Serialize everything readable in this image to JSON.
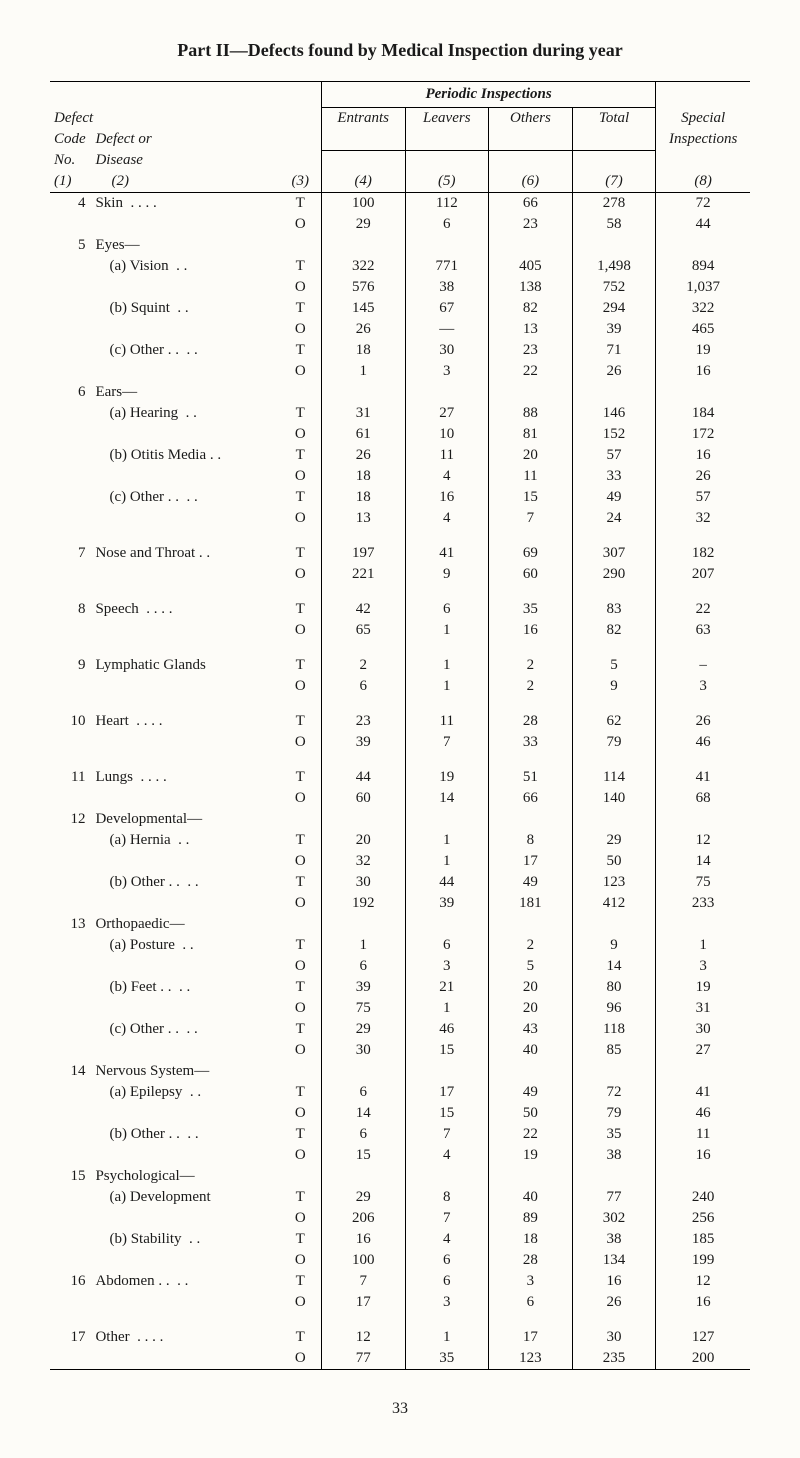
{
  "title": "Part II—Defects found by Medical Inspection during year",
  "page_number": "33",
  "headers": {
    "defect_label1": "Defect",
    "code_label": "Code",
    "defect_or": "Defect or",
    "no_label": "No.",
    "disease_label": "Disease",
    "col1": "(1)",
    "col2": "(2)",
    "col3": "(3)",
    "col4": "(4)",
    "col5": "(5)",
    "col6": "(6)",
    "col7": "(7)",
    "col8": "(8)",
    "periodic": "Periodic Inspections",
    "entrants": "Entrants",
    "leavers": "Leavers",
    "others": "Others",
    "total": "Total",
    "special": "Special",
    "inspections": "Inspections"
  },
  "rows": [
    {
      "no": "4",
      "label": "Skin",
      "dots": ". .    . .",
      "t": [
        "100",
        "112",
        "66",
        "278",
        "72"
      ],
      "o": [
        "29",
        "6",
        "23",
        "58",
        "44"
      ]
    },
    {
      "no": "5",
      "label": "Eyes—",
      "t": null,
      "o": null
    },
    {
      "no": "",
      "label": "(a)  Vision",
      "sub": true,
      "dots": ". .",
      "t": [
        "322",
        "771",
        "405",
        "1,498",
        "894"
      ],
      "o": [
        "576",
        "38",
        "138",
        "752",
        "1,037"
      ]
    },
    {
      "no": "",
      "label": "(b)  Squint",
      "sub": true,
      "dots": ". .",
      "t": [
        "145",
        "67",
        "82",
        "294",
        "322"
      ],
      "o": [
        "26",
        "—",
        "13",
        "39",
        "465"
      ]
    },
    {
      "no": "",
      "label": "(c)  Other . .",
      "sub": true,
      "dots": ". .",
      "t": [
        "18",
        "30",
        "23",
        "71",
        "19"
      ],
      "o": [
        "1",
        "3",
        "22",
        "26",
        "16"
      ]
    },
    {
      "no": "6",
      "label": "Ears—",
      "t": null,
      "o": null
    },
    {
      "no": "",
      "label": "(a)  Hearing",
      "sub": true,
      "dots": ". .",
      "t": [
        "31",
        "27",
        "88",
        "146",
        "184"
      ],
      "o": [
        "61",
        "10",
        "81",
        "152",
        "172"
      ]
    },
    {
      "no": "",
      "label": "(b)  Otitis Media . .",
      "sub": true,
      "t": [
        "26",
        "11",
        "20",
        "57",
        "16"
      ],
      "o": [
        "18",
        "4",
        "11",
        "33",
        "26"
      ]
    },
    {
      "no": "",
      "label": "(c)  Other . .",
      "sub": true,
      "dots": ". .",
      "t": [
        "18",
        "16",
        "15",
        "49",
        "57"
      ],
      "o": [
        "13",
        "4",
        "7",
        "24",
        "32"
      ],
      "gap_after": true
    },
    {
      "no": "7",
      "label": "Nose and Throat . .",
      "t": [
        "197",
        "41",
        "69",
        "307",
        "182"
      ],
      "o": [
        "221",
        "9",
        "60",
        "290",
        "207"
      ],
      "gap_after": true
    },
    {
      "no": "8",
      "label": "Speech",
      "dots": ". .    . .",
      "t": [
        "42",
        "6",
        "35",
        "83",
        "22"
      ],
      "o": [
        "65",
        "1",
        "16",
        "82",
        "63"
      ],
      "gap_after": true
    },
    {
      "no": "9",
      "label": "Lymphatic Glands",
      "t": [
        "2",
        "1",
        "2",
        "5",
        "–"
      ],
      "o": [
        "6",
        "1",
        "2",
        "9",
        "3"
      ],
      "gap_after": true
    },
    {
      "no": "10",
      "label": "Heart",
      "dots": ". .    . .",
      "t": [
        "23",
        "11",
        "28",
        "62",
        "26"
      ],
      "o": [
        "39",
        "7",
        "33",
        "79",
        "46"
      ],
      "gap_after": true
    },
    {
      "no": "11",
      "label": "Lungs",
      "dots": ". .    . .",
      "t": [
        "44",
        "19",
        "51",
        "114",
        "41"
      ],
      "o": [
        "60",
        "14",
        "66",
        "140",
        "68"
      ]
    },
    {
      "no": "12",
      "label": "Developmental—",
      "t": null,
      "o": null
    },
    {
      "no": "",
      "label": "(a)  Hernia",
      "sub": true,
      "dots": ". .",
      "t": [
        "20",
        "1",
        "8",
        "29",
        "12"
      ],
      "o": [
        "32",
        "1",
        "17",
        "50",
        "14"
      ]
    },
    {
      "no": "",
      "label": "(b)  Other . .",
      "sub": true,
      "dots": ". .",
      "t": [
        "30",
        "44",
        "49",
        "123",
        "75"
      ],
      "o": [
        "192",
        "39",
        "181",
        "412",
        "233"
      ]
    },
    {
      "no": "13",
      "label": "Orthopaedic—",
      "t": null,
      "o": null
    },
    {
      "no": "",
      "label": "(a)  Posture",
      "sub": true,
      "dots": ". .",
      "t": [
        "1",
        "6",
        "2",
        "9",
        "1"
      ],
      "o": [
        "6",
        "3",
        "5",
        "14",
        "3"
      ]
    },
    {
      "no": "",
      "label": "(b)  Feet  . .",
      "sub": true,
      "dots": ". .",
      "t": [
        "39",
        "21",
        "20",
        "80",
        "19"
      ],
      "o": [
        "75",
        "1",
        "20",
        "96",
        "31"
      ]
    },
    {
      "no": "",
      "label": "(c)  Other . .",
      "sub": true,
      "dots": ". .",
      "t": [
        "29",
        "46",
        "43",
        "118",
        "30"
      ],
      "o": [
        "30",
        "15",
        "40",
        "85",
        "27"
      ]
    },
    {
      "no": "14",
      "label": "Nervous System—",
      "t": null,
      "o": null
    },
    {
      "no": "",
      "label": "(a)  Epilepsy",
      "sub": true,
      "dots": ". .",
      "t": [
        "6",
        "17",
        "49",
        "72",
        "41"
      ],
      "o": [
        "14",
        "15",
        "50",
        "79",
        "46"
      ]
    },
    {
      "no": "",
      "label": "(b)  Other . .",
      "sub": true,
      "dots": ". .",
      "t": [
        "6",
        "7",
        "22",
        "35",
        "11"
      ],
      "o": [
        "15",
        "4",
        "19",
        "38",
        "16"
      ]
    },
    {
      "no": "15",
      "label": "Psychological—",
      "t": null,
      "o": null
    },
    {
      "no": "",
      "label": "(a)  Development",
      "sub": true,
      "t": [
        "29",
        "8",
        "40",
        "77",
        "240"
      ],
      "o": [
        "206",
        "7",
        "89",
        "302",
        "256"
      ]
    },
    {
      "no": "",
      "label": "(b)  Stability",
      "sub": true,
      "dots": ". .",
      "t": [
        "16",
        "4",
        "18",
        "38",
        "185"
      ],
      "o": [
        "100",
        "6",
        "28",
        "134",
        "199"
      ]
    },
    {
      "no": "16",
      "label": "Abdomen . .",
      "dots": ". .",
      "t": [
        "7",
        "6",
        "3",
        "16",
        "12"
      ],
      "o": [
        "17",
        "3",
        "6",
        "26",
        "16"
      ],
      "gap_after": true
    },
    {
      "no": "17",
      "label": "Other",
      "dots": ". .    . .",
      "t": [
        "12",
        "1",
        "17",
        "30",
        "127"
      ],
      "o": [
        "77",
        "35",
        "123",
        "235",
        "200"
      ]
    }
  ],
  "style": {
    "background": "#fdfcf8",
    "text_color": "#1a1a1a",
    "rule_color": "#000000",
    "font_family": "Times New Roman",
    "body_fontsize": 15,
    "title_fontsize": 18
  }
}
